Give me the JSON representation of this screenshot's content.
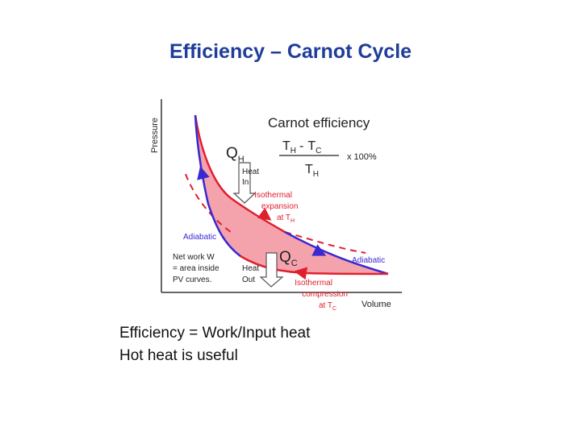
{
  "slide": {
    "title": "Efficiency – Carnot Cycle",
    "bullets": [
      "Efficiency = Work/Input heat",
      "Hot heat is useful"
    ]
  },
  "diagram": {
    "y_axis_label": "Pressure",
    "x_axis_label": "Volume",
    "heading": "Carnot efficiency",
    "formula": {
      "numerator": "TH - TC",
      "numerator_left": "T",
      "numerator_left_sub": "H",
      "numerator_minus": "-",
      "numerator_right": "T",
      "numerator_right_sub": "C",
      "denominator": "T",
      "denominator_sub": "H",
      "multiplier": "x 100%"
    },
    "qh": {
      "main": "Q",
      "sub": "H"
    },
    "qc": {
      "main": "Q",
      "sub": "C"
    },
    "heat_in": [
      "Heat",
      "In"
    ],
    "heat_out": [
      "Heat",
      "Out"
    ],
    "isothermal_expansion": [
      "Isothermal",
      "expansion",
      "at T",
      "H"
    ],
    "isothermal_compression": [
      "Isothermal",
      "compression",
      "at T",
      "C"
    ],
    "adiabatic_left": "Adiabatic",
    "adiabatic_right": "Adiabatic",
    "net_work": [
      "Net work W",
      "= area inside",
      "PV curves."
    ],
    "colors": {
      "isotherm": "#e0202e",
      "adiabat": "#3a28d0",
      "fill": "#f4a3ad",
      "title": "#1f3d99"
    }
  }
}
